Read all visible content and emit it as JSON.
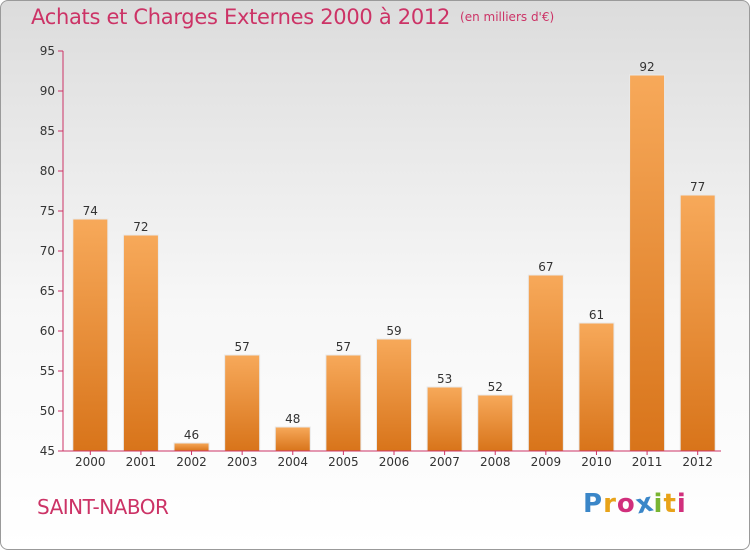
{
  "header": {
    "title": "Achats et Charges Externes 2000 à 2012",
    "unit": "(en milliers d'€)"
  },
  "footer": {
    "city": "SAINT-NABOR",
    "logo_letters": [
      "P",
      "r",
      "o",
      "x",
      "i",
      "t",
      "i"
    ],
    "logo_colors": [
      "#3a86c8",
      "#e8a319",
      "#d12f7c",
      "#3a86c8",
      "#79b532",
      "#e8a319",
      "#d12f7c"
    ]
  },
  "chart_data": {
    "type": "bar",
    "title": "Achats et Charges Externes 2000 à 2012",
    "subtitle": "(en milliers d'€)",
    "categories": [
      "2000",
      "2001",
      "2002",
      "2003",
      "2004",
      "2005",
      "2006",
      "2007",
      "2008",
      "2009",
      "2010",
      "2011",
      "2012"
    ],
    "values": [
      74,
      72,
      46,
      57,
      48,
      57,
      59,
      53,
      52,
      67,
      61,
      92,
      77
    ],
    "ylim": [
      45,
      95
    ],
    "yticks": [
      45,
      50,
      55,
      60,
      65,
      70,
      75,
      80,
      85,
      90,
      95
    ],
    "grid": false,
    "bar_color_top": "#f7a95a",
    "bar_color_bottom": "#d8741a",
    "axis_color": "#cc3366"
  }
}
